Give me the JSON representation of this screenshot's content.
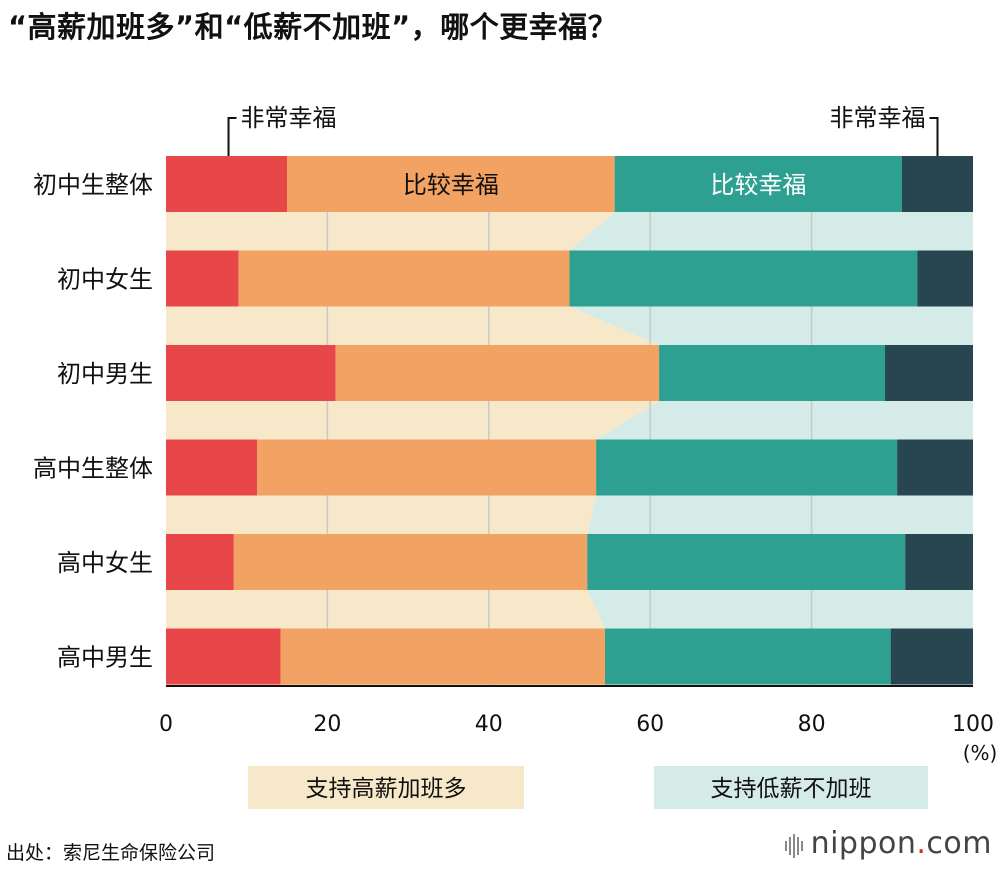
{
  "title": "“高薪加班多”和“低薪不加班”，哪个更幸福？",
  "source": "出处：索尼生命保险公司",
  "brand": {
    "name": "nippon",
    "dot": ".",
    "suffix": "com"
  },
  "colors": {
    "very_happy_overtime": "#e8474a",
    "fairly_happy_overtime": "#f2a263",
    "fairly_happy_no_overtime": "#2ea092",
    "very_happy_no_overtime": "#27464f",
    "support_overtime_bg": "#f7e8c9",
    "support_no_overtime_bg": "#d5ebe7",
    "gridline": "#c8c8c8"
  },
  "annotations": {
    "very_happy_left": "非常幸福",
    "very_happy_right": "非常幸福",
    "fairly_happy_left": "比较幸福",
    "fairly_happy_right": "比较幸福"
  },
  "chart_data": {
    "type": "bar",
    "orientation": "horizontal",
    "stacked": true,
    "title": "“高薪加班多”和“低薪不加班”，哪个更幸福？",
    "categories": [
      "初中生整体",
      "初中女生",
      "初中男生",
      "高中生整体",
      "高中女生",
      "高中男生"
    ],
    "series": [
      {
        "name": "非常幸福",
        "group": "支持高薪加班多",
        "values": [
          15.0,
          9.0,
          21.0,
          11.3,
          8.4,
          14.2
        ]
      },
      {
        "name": "比较幸福",
        "group": "支持高薪加班多",
        "values": [
          40.6,
          41.0,
          40.1,
          42.0,
          43.8,
          40.2
        ]
      },
      {
        "name": "比较幸福",
        "group": "支持低薪不加班",
        "values": [
          35.6,
          43.1,
          28.0,
          37.3,
          39.4,
          35.4
        ]
      },
      {
        "name": "非常幸福",
        "group": "支持低薪不加班",
        "values": [
          8.8,
          6.9,
          10.9,
          9.4,
          8.4,
          10.2
        ]
      }
    ],
    "xlim": [
      0,
      100
    ],
    "xticks": [
      0,
      20,
      40,
      60,
      80,
      100
    ],
    "xunit": "(%)",
    "xlabel": "",
    "ylabel": "",
    "grid": true,
    "legend": [
      {
        "label": "支持高薪加班多",
        "color": "#f7e8c9"
      },
      {
        "label": "支持低薪不加班",
        "color": "#d5ebe7"
      }
    ],
    "legend_position": "bottom"
  }
}
